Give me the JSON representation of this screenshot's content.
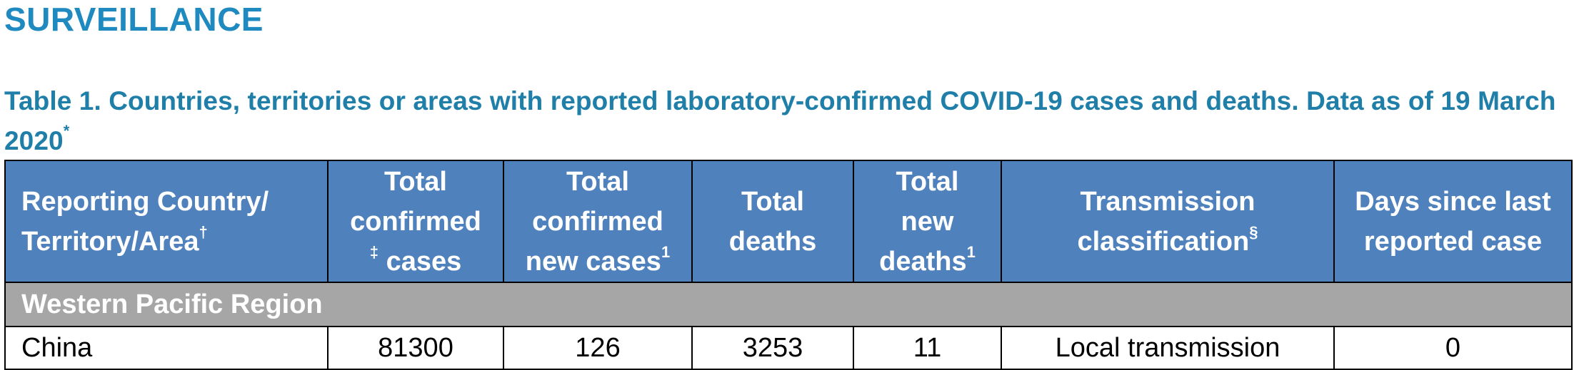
{
  "heading": "SURVEILLANCE",
  "caption": {
    "text": "Table 1. Countries, territories or areas with reported laboratory-confirmed COVID-19 cases and deaths. Data as of 19 March 2020",
    "footnote_mark": "*"
  },
  "table": {
    "headers": {
      "country": {
        "line1": "Reporting Country/",
        "line2": "Territory/Area",
        "mark": "†"
      },
      "total_confirmed": {
        "line1": "Total",
        "line2": "confirmed",
        "mark": "‡",
        "line3": "cases"
      },
      "new_cases": {
        "line1": "Total",
        "line2": "confirmed",
        "line3": "new cases",
        "mark": "1"
      },
      "deaths": {
        "line1": "Total",
        "line2": "deaths"
      },
      "new_deaths": {
        "line1": "Total",
        "line2": "new",
        "line3": "deaths",
        "mark": "1"
      },
      "transmission": {
        "line1": "Transmission",
        "line2": "classification",
        "mark": "§"
      },
      "days_since": {
        "line1": "Days since last",
        "line2": "reported case"
      }
    },
    "region": "Western Pacific Region",
    "rows": [
      {
        "country": "China",
        "total_confirmed": "81300",
        "new_cases": "126",
        "deaths": "3253",
        "new_deaths": "11",
        "transmission": "Local transmission",
        "days_since": "0"
      }
    ]
  }
}
